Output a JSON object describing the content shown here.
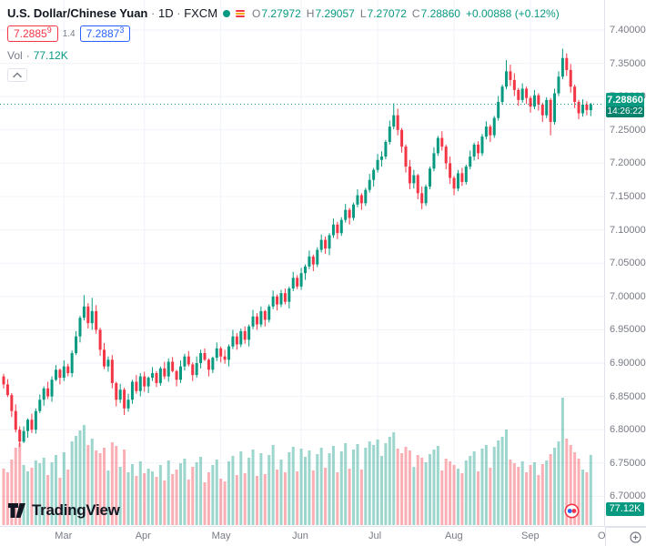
{
  "legend": {
    "symbol": "U.S. Dollar/Chinese Yuan",
    "sep": "·",
    "interval": "1D",
    "exchange": "FXCM",
    "ohlc": {
      "o_label": "O",
      "o": "7.27972",
      "h_label": "H",
      "h": "7.29057",
      "l_label": "L",
      "l": "7.27072",
      "c_label": "C",
      "c": "7.28860",
      "change": "+0.00888 (+0.12%)"
    },
    "bid": {
      "main": "7.2885",
      "sup": "9"
    },
    "spread": "1.4",
    "ask": {
      "main": "7.2887",
      "sup": "3"
    },
    "vol_label": "Vol",
    "vol_sep": "·",
    "vol_value": "77.12K"
  },
  "watermark": {
    "text": "TradingView"
  },
  "colors": {
    "up": "#089981",
    "down": "#f23645",
    "vol_up": "rgba(8,153,129,0.4)",
    "vol_down": "rgba(242,54,69,0.4)",
    "accent": "#089981",
    "bid": "#f23645",
    "ask": "#2962ff",
    "grid": "#f0f3fa",
    "axis_text": "#787b86",
    "text": "#131722"
  },
  "chart_data": {
    "type": "candlestick_with_volume",
    "title": "U.S. Dollar/Chinese Yuan",
    "interval": "1D",
    "exchange": "FXCM",
    "ylim": [
      6.7,
      7.4
    ],
    "y_ticks": [
      {
        "v": 7.4,
        "t": "7.40000"
      },
      {
        "v": 7.35,
        "t": "7.35000"
      },
      {
        "v": 7.3,
        "t": "7.30000"
      },
      {
        "v": 7.25,
        "t": "7.25000"
      },
      {
        "v": 7.2,
        "t": "7.20000"
      },
      {
        "v": 7.15,
        "t": "7.15000"
      },
      {
        "v": 7.1,
        "t": "7.10000"
      },
      {
        "v": 7.05,
        "t": "7.05000"
      },
      {
        "v": 7.0,
        "t": "7.00000"
      },
      {
        "v": 6.95,
        "t": "6.95000"
      },
      {
        "v": 6.9,
        "t": "6.90000"
      },
      {
        "v": 6.85,
        "t": "6.85000"
      },
      {
        "v": 6.8,
        "t": "6.80000"
      },
      {
        "v": 6.75,
        "t": "6.75000"
      },
      {
        "v": 6.7,
        "t": "6.70000"
      }
    ],
    "month_ticks": [
      {
        "label": "Mar",
        "i": 15
      },
      {
        "label": "Apr",
        "i": 35
      },
      {
        "label": "May",
        "i": 54
      },
      {
        "label": "Jun",
        "i": 74
      },
      {
        "label": "Jul",
        "i": 93
      },
      {
        "label": "Aug",
        "i": 112
      },
      {
        "label": "Sep",
        "i": 131
      },
      {
        "label": "Oct",
        "i": 150
      }
    ],
    "last_price": {
      "value": 7.2886,
      "label": "7.28860",
      "countdown": "14:26:22"
    },
    "volume_label": "77.12K",
    "columns": [
      "open",
      "high",
      "low",
      "close",
      "volume_k"
    ],
    "candles": [
      [
        6.88,
        6.884,
        6.862,
        6.868,
        62
      ],
      [
        6.868,
        6.876,
        6.849,
        6.852,
        58
      ],
      [
        6.852,
        6.855,
        6.819,
        6.828,
        72
      ],
      [
        6.828,
        6.838,
        6.796,
        6.8,
        85
      ],
      [
        6.8,
        6.805,
        6.774,
        6.782,
        90
      ],
      [
        6.782,
        6.805,
        6.78,
        6.798,
        66
      ],
      [
        6.798,
        6.817,
        6.788,
        6.815,
        59
      ],
      [
        6.815,
        6.824,
        6.795,
        6.8,
        63
      ],
      [
        6.8,
        6.832,
        6.794,
        6.828,
        71
      ],
      [
        6.828,
        6.853,
        6.825,
        6.845,
        68
      ],
      [
        6.845,
        6.865,
        6.836,
        6.862,
        74
      ],
      [
        6.862,
        6.872,
        6.846,
        6.85,
        55
      ],
      [
        6.85,
        6.88,
        6.842,
        6.875,
        69
      ],
      [
        6.875,
        6.897,
        6.873,
        6.89,
        77
      ],
      [
        6.89,
        6.892,
        6.868,
        6.878,
        52
      ],
      [
        6.878,
        6.904,
        6.873,
        6.895,
        80
      ],
      [
        6.895,
        6.899,
        6.88,
        6.885,
        61
      ],
      [
        6.885,
        6.919,
        6.879,
        6.915,
        92
      ],
      [
        6.915,
        6.948,
        6.912,
        6.94,
        98
      ],
      [
        6.94,
        6.971,
        6.931,
        6.968,
        104
      ],
      [
        6.968,
        7.002,
        6.964,
        6.985,
        110
      ],
      [
        6.985,
        6.99,
        6.952,
        6.96,
        88
      ],
      [
        6.96,
        6.998,
        6.95,
        6.978,
        95
      ],
      [
        6.978,
        6.987,
        6.944,
        6.95,
        82
      ],
      [
        6.95,
        6.953,
        6.911,
        6.92,
        79
      ],
      [
        6.92,
        6.93,
        6.891,
        6.895,
        85
      ],
      [
        6.895,
        6.91,
        6.887,
        6.905,
        60
      ],
      [
        6.905,
        6.912,
        6.862,
        6.87,
        91
      ],
      [
        6.87,
        6.872,
        6.835,
        6.845,
        87
      ],
      [
        6.845,
        6.869,
        6.84,
        6.86,
        64
      ],
      [
        6.86,
        6.863,
        6.822,
        6.832,
        83
      ],
      [
        6.832,
        6.854,
        6.827,
        6.845,
        58
      ],
      [
        6.845,
        6.875,
        6.839,
        6.872,
        67
      ],
      [
        6.872,
        6.882,
        6.854,
        6.858,
        54
      ],
      [
        6.858,
        6.885,
        6.85,
        6.88,
        70
      ],
      [
        6.88,
        6.887,
        6.857,
        6.865,
        57
      ],
      [
        6.865,
        6.88,
        6.855,
        6.878,
        62
      ],
      [
        6.878,
        6.894,
        6.873,
        6.885,
        59
      ],
      [
        6.885,
        6.888,
        6.864,
        6.87,
        53
      ],
      [
        6.87,
        6.895,
        6.866,
        6.892,
        66
      ],
      [
        6.892,
        6.902,
        6.876,
        6.88,
        49
      ],
      [
        6.88,
        6.907,
        6.872,
        6.902,
        71
      ],
      [
        6.902,
        6.909,
        6.886,
        6.888,
        56
      ],
      [
        6.888,
        6.89,
        6.865,
        6.875,
        61
      ],
      [
        6.875,
        6.904,
        6.87,
        6.895,
        68
      ],
      [
        6.895,
        6.914,
        6.889,
        6.91,
        73
      ],
      [
        6.91,
        6.918,
        6.895,
        6.898,
        50
      ],
      [
        6.898,
        6.901,
        6.873,
        6.882,
        64
      ],
      [
        6.882,
        6.91,
        6.878,
        6.9,
        69
      ],
      [
        6.9,
        6.92,
        6.892,
        6.915,
        75
      ],
      [
        6.915,
        6.922,
        6.903,
        6.905,
        47
      ],
      [
        6.905,
        6.907,
        6.88,
        6.89,
        58
      ],
      [
        6.89,
        6.91,
        6.885,
        6.908,
        66
      ],
      [
        6.908,
        6.931,
        6.903,
        6.922,
        72
      ],
      [
        6.922,
        6.925,
        6.901,
        6.91,
        51
      ],
      [
        6.91,
        6.92,
        6.899,
        6.905,
        48
      ],
      [
        6.905,
        6.928,
        6.895,
        6.925,
        70
      ],
      [
        6.925,
        6.95,
        6.921,
        6.94,
        76
      ],
      [
        6.94,
        6.945,
        6.92,
        6.928,
        55
      ],
      [
        6.928,
        6.952,
        6.924,
        6.948,
        81
      ],
      [
        6.948,
        6.955,
        6.929,
        6.935,
        57
      ],
      [
        6.935,
        6.958,
        6.925,
        6.955,
        74
      ],
      [
        6.955,
        6.98,
        6.951,
        6.97,
        83
      ],
      [
        6.97,
        6.975,
        6.95,
        6.958,
        54
      ],
      [
        6.958,
        6.985,
        6.954,
        6.978,
        79
      ],
      [
        6.978,
        6.98,
        6.955,
        6.965,
        56
      ],
      [
        6.965,
        6.988,
        6.961,
        6.985,
        77
      ],
      [
        6.985,
        7.009,
        6.981,
        7.0,
        88
      ],
      [
        7.0,
        7.003,
        6.979,
        6.988,
        61
      ],
      [
        6.988,
        7.01,
        6.984,
        7.005,
        72
      ],
      [
        7.005,
        7.012,
        6.988,
        6.992,
        58
      ],
      [
        6.992,
        7.015,
        6.982,
        7.012,
        80
      ],
      [
        7.012,
        7.037,
        7.008,
        7.028,
        86
      ],
      [
        7.028,
        7.032,
        7.011,
        7.015,
        59
      ],
      [
        7.015,
        7.043,
        7.01,
        7.035,
        84
      ],
      [
        7.035,
        7.048,
        7.025,
        7.045,
        75
      ],
      [
        7.045,
        7.069,
        7.041,
        7.06,
        82
      ],
      [
        7.06,
        7.063,
        7.038,
        7.048,
        60
      ],
      [
        7.048,
        7.074,
        7.044,
        7.07,
        78
      ],
      [
        7.07,
        7.093,
        7.066,
        7.085,
        85
      ],
      [
        7.085,
        7.09,
        7.064,
        7.072,
        63
      ],
      [
        7.072,
        7.095,
        7.062,
        7.092,
        79
      ],
      [
        7.092,
        7.117,
        7.088,
        7.108,
        87
      ],
      [
        7.108,
        7.112,
        7.086,
        7.095,
        58
      ],
      [
        7.095,
        7.119,
        7.091,
        7.115,
        81
      ],
      [
        7.115,
        7.139,
        7.111,
        7.13,
        90
      ],
      [
        7.13,
        7.133,
        7.108,
        7.118,
        62
      ],
      [
        7.118,
        7.141,
        7.114,
        7.138,
        83
      ],
      [
        7.138,
        7.161,
        7.134,
        7.152,
        89
      ],
      [
        7.152,
        7.155,
        7.13,
        7.14,
        61
      ],
      [
        7.14,
        7.163,
        7.136,
        7.16,
        85
      ],
      [
        7.16,
        7.184,
        7.156,
        7.175,
        92
      ],
      [
        7.175,
        7.193,
        7.165,
        7.19,
        88
      ],
      [
        7.19,
        7.214,
        7.186,
        7.205,
        94
      ],
      [
        7.205,
        7.218,
        7.195,
        7.21,
        76
      ],
      [
        7.21,
        7.235,
        7.206,
        7.232,
        90
      ],
      [
        7.232,
        7.264,
        7.228,
        7.255,
        97
      ],
      [
        7.255,
        7.29,
        7.251,
        7.272,
        102
      ],
      [
        7.272,
        7.282,
        7.242,
        7.25,
        84
      ],
      [
        7.25,
        7.253,
        7.216,
        7.225,
        79
      ],
      [
        7.225,
        7.228,
        7.186,
        7.195,
        86
      ],
      [
        7.195,
        7.205,
        7.161,
        7.17,
        82
      ],
      [
        7.17,
        7.19,
        7.162,
        7.182,
        64
      ],
      [
        7.182,
        7.184,
        7.146,
        7.155,
        77
      ],
      [
        7.155,
        7.165,
        7.131,
        7.14,
        74
      ],
      [
        7.14,
        7.168,
        7.136,
        7.165,
        69
      ],
      [
        7.165,
        7.195,
        7.161,
        7.192,
        78
      ],
      [
        7.192,
        7.224,
        7.188,
        7.215,
        83
      ],
      [
        7.215,
        7.241,
        7.211,
        7.238,
        87
      ],
      [
        7.238,
        7.248,
        7.219,
        7.225,
        60
      ],
      [
        7.225,
        7.228,
        7.191,
        7.2,
        73
      ],
      [
        7.2,
        7.21,
        7.169,
        7.178,
        70
      ],
      [
        7.178,
        7.181,
        7.152,
        7.162,
        66
      ],
      [
        7.162,
        7.19,
        7.158,
        7.185,
        62
      ],
      [
        7.185,
        7.193,
        7.166,
        7.172,
        57
      ],
      [
        7.172,
        7.198,
        7.168,
        7.195,
        71
      ],
      [
        7.195,
        7.219,
        7.191,
        7.21,
        76
      ],
      [
        7.21,
        7.231,
        7.204,
        7.228,
        81
      ],
      [
        7.228,
        7.233,
        7.206,
        7.215,
        59
      ],
      [
        7.215,
        7.244,
        7.211,
        7.24,
        84
      ],
      [
        7.24,
        7.263,
        7.236,
        7.255,
        88
      ],
      [
        7.255,
        7.258,
        7.232,
        7.242,
        63
      ],
      [
        7.242,
        7.271,
        7.238,
        7.268,
        86
      ],
      [
        7.268,
        7.301,
        7.264,
        7.292,
        93
      ],
      [
        7.292,
        7.318,
        7.288,
        7.315,
        97
      ],
      [
        7.315,
        7.355,
        7.311,
        7.338,
        105
      ],
      [
        7.338,
        7.348,
        7.316,
        7.325,
        72
      ],
      [
        7.325,
        7.335,
        7.301,
        7.31,
        68
      ],
      [
        7.31,
        7.313,
        7.286,
        7.295,
        64
      ],
      [
        7.295,
        7.32,
        7.291,
        7.312,
        70
      ],
      [
        7.312,
        7.315,
        7.289,
        7.298,
        58
      ],
      [
        7.298,
        7.301,
        7.276,
        7.285,
        66
      ],
      [
        7.285,
        7.31,
        7.281,
        7.302,
        69
      ],
      [
        7.302,
        7.305,
        7.279,
        7.288,
        55
      ],
      [
        7.288,
        7.291,
        7.262,
        7.272,
        67
      ],
      [
        7.272,
        7.299,
        7.268,
        7.295,
        71
      ],
      [
        7.295,
        7.298,
        7.242,
        7.262,
        78
      ],
      [
        7.262,
        7.312,
        7.258,
        7.305,
        85
      ],
      [
        7.305,
        7.338,
        7.301,
        7.33,
        92
      ],
      [
        7.33,
        7.372,
        7.326,
        7.358,
        140
      ],
      [
        7.358,
        7.365,
        7.331,
        7.34,
        95
      ],
      [
        7.34,
        7.349,
        7.306,
        7.315,
        88
      ],
      [
        7.315,
        7.318,
        7.283,
        7.292,
        80
      ],
      [
        7.292,
        7.295,
        7.266,
        7.275,
        73
      ],
      [
        7.275,
        7.296,
        7.27,
        7.288,
        61
      ],
      [
        7.288,
        7.293,
        7.272,
        7.28,
        58
      ],
      [
        7.27972,
        7.29057,
        7.27072,
        7.2886,
        77.12
      ]
    ]
  }
}
